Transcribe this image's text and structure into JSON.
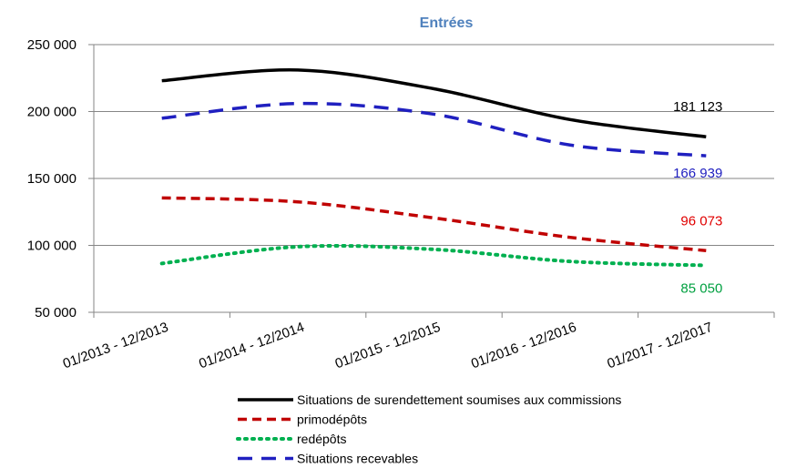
{
  "chart_data": {
    "type": "line",
    "title": "Entrées",
    "title_color": "#4F81BD",
    "categories": [
      "01/2013 - 12/2013",
      "01/2014 - 12/2014",
      "01/2015 - 12/2015",
      "01/2016 - 12/2016",
      "01/2017 - 12/2017"
    ],
    "ylim": [
      50000,
      250000
    ],
    "yticks": [
      50000,
      100000,
      150000,
      200000,
      250000
    ],
    "ytick_labels": [
      "50 000",
      "100 000",
      "150 000",
      "200 000",
      "250 000"
    ],
    "grid": true,
    "legend_position": "bottom",
    "series": [
      {
        "name": "Situations de surendettement soumises aux commissions",
        "values": [
          223000,
          231000,
          217000,
          194000,
          181123
        ],
        "color": "#000000",
        "style": "solid",
        "end_label": "181 123",
        "label_color": "#000000"
      },
      {
        "name": "primodépôts",
        "values": [
          135500,
          132500,
          120500,
          106000,
          96073
        ],
        "color": "#C00000",
        "style": "dashed",
        "end_label": "96 073",
        "label_color": "#E00000"
      },
      {
        "name": "redépôts",
        "values": [
          86500,
          99000,
          97000,
          88000,
          85050
        ],
        "color": "#00B050",
        "style": "dotted",
        "end_label": "85 050",
        "label_color": "#00A040"
      },
      {
        "name": "Situations recevables",
        "values": [
          195000,
          206000,
          198000,
          175000,
          166939
        ],
        "color": "#2020C0",
        "style": "longdash",
        "end_label": "166 939",
        "label_color": "#2020C0"
      }
    ]
  }
}
